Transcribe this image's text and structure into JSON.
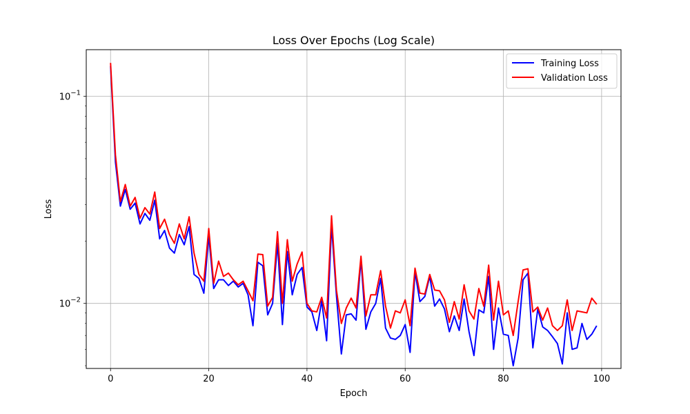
{
  "chart_data": {
    "type": "line",
    "title": "Loss Over Epochs (Log Scale)",
    "xlabel": "Epoch",
    "ylabel": "Loss",
    "xlim": [
      -4.95,
      103.95
    ],
    "ylim": [
      0.00485,
      0.168
    ],
    "yscale": "log",
    "grid": true,
    "legend_position": "top-right",
    "x_ticks": [
      0,
      20,
      40,
      60,
      80,
      100
    ],
    "y_ticks": [
      {
        "value": 0.01,
        "base": "10",
        "exponent": "−2"
      },
      {
        "value": 0.1,
        "base": "10",
        "exponent": "−1"
      }
    ],
    "x": [
      0,
      1,
      2,
      3,
      4,
      5,
      6,
      7,
      8,
      9,
      10,
      11,
      12,
      13,
      14,
      15,
      16,
      17,
      18,
      19,
      20,
      21,
      22,
      23,
      24,
      25,
      26,
      27,
      28,
      29,
      30,
      31,
      32,
      33,
      34,
      35,
      36,
      37,
      38,
      39,
      40,
      41,
      42,
      43,
      44,
      45,
      46,
      47,
      48,
      49,
      50,
      51,
      52,
      53,
      54,
      55,
      56,
      57,
      58,
      59,
      60,
      61,
      62,
      63,
      64,
      65,
      66,
      67,
      68,
      69,
      70,
      71,
      72,
      73,
      74,
      75,
      76,
      77,
      78,
      79,
      80,
      81,
      82,
      83,
      84,
      85,
      86,
      87,
      88,
      89,
      90,
      91,
      92,
      93,
      94,
      95,
      96,
      97,
      98,
      99
    ],
    "series": [
      {
        "name": "Training Loss",
        "color": "#0000ff",
        "values": [
          0.14,
          0.048,
          0.0295,
          0.0355,
          0.0285,
          0.0305,
          0.0242,
          0.0272,
          0.0252,
          0.0315,
          0.0205,
          0.0225,
          0.0185,
          0.0175,
          0.0215,
          0.0192,
          0.0235,
          0.0138,
          0.0132,
          0.0112,
          0.0212,
          0.0118,
          0.013,
          0.013,
          0.0122,
          0.0128,
          0.012,
          0.0125,
          0.011,
          0.0078,
          0.0158,
          0.0152,
          0.0088,
          0.01,
          0.0195,
          0.0079,
          0.0178,
          0.011,
          0.0138,
          0.0149,
          0.0096,
          0.0091,
          0.0074,
          0.0103,
          0.0066,
          0.0238,
          0.0109,
          0.0057,
          0.0088,
          0.0089,
          0.0083,
          0.0163,
          0.0075,
          0.0091,
          0.01,
          0.0132,
          0.0076,
          0.0068,
          0.0067,
          0.007,
          0.0079,
          0.0058,
          0.0142,
          0.0102,
          0.0108,
          0.0135,
          0.0097,
          0.0105,
          0.0094,
          0.0073,
          0.0087,
          0.0074,
          0.0105,
          0.0073,
          0.0056,
          0.0093,
          0.009,
          0.0135,
          0.006,
          0.0095,
          0.0071,
          0.007,
          0.005,
          0.0068,
          0.013,
          0.014,
          0.0061,
          0.0094,
          0.0077,
          0.0074,
          0.0069,
          0.0064,
          0.0051,
          0.009,
          0.006,
          0.0061,
          0.008,
          0.0067,
          0.0071,
          0.0078
        ]
      },
      {
        "name": "Validation Loss",
        "color": "#ff0000",
        "values": [
          0.145,
          0.052,
          0.031,
          0.0375,
          0.0295,
          0.0325,
          0.0258,
          0.029,
          0.027,
          0.0345,
          0.023,
          0.0255,
          0.0215,
          0.0195,
          0.0242,
          0.0205,
          0.0262,
          0.0175,
          0.0138,
          0.0128,
          0.023,
          0.0125,
          0.016,
          0.0135,
          0.014,
          0.013,
          0.0123,
          0.0128,
          0.0115,
          0.0103,
          0.0173,
          0.0172,
          0.0097,
          0.0107,
          0.0222,
          0.01,
          0.0203,
          0.0128,
          0.0155,
          0.0177,
          0.01,
          0.0092,
          0.0091,
          0.0107,
          0.0085,
          0.0265,
          0.0116,
          0.008,
          0.0095,
          0.0106,
          0.0095,
          0.0169,
          0.0087,
          0.011,
          0.011,
          0.0144,
          0.0097,
          0.0076,
          0.0092,
          0.009,
          0.0104,
          0.0078,
          0.0148,
          0.0112,
          0.0111,
          0.0138,
          0.0116,
          0.0115,
          0.0104,
          0.0081,
          0.0102,
          0.0084,
          0.0123,
          0.0092,
          0.0084,
          0.0118,
          0.0097,
          0.0153,
          0.0083,
          0.0128,
          0.0088,
          0.0092,
          0.007,
          0.0102,
          0.0145,
          0.0147,
          0.0091,
          0.0096,
          0.0083,
          0.0095,
          0.0078,
          0.0074,
          0.0078,
          0.0104,
          0.0074,
          0.0092,
          0.0091,
          0.009,
          0.0106,
          0.0099
        ]
      }
    ]
  }
}
